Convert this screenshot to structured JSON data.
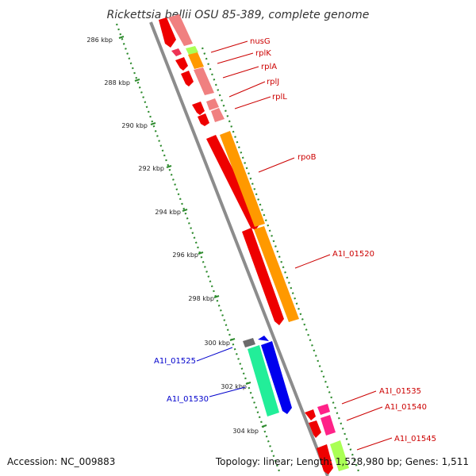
{
  "title": "Rickettsia bellii OSU 85-389, complete genome",
  "footer": {
    "accession": "Accession: NC_009883",
    "summary": "Topology: linear; Length: 1,528,980 bp; Genes: 1,511"
  },
  "colors": {
    "backbone": "#8c8c8c",
    "tick": "#2e8b2e",
    "label_red": "#cc0000",
    "label_blue": "#0000cc"
  },
  "ticks": [
    {
      "label": "286 kbp"
    },
    {
      "label": "288 kbp"
    },
    {
      "label": "290 kbp"
    },
    {
      "label": "292 kbp"
    },
    {
      "label": "294 kbp"
    },
    {
      "label": "296 kbp"
    },
    {
      "label": "298 kbp"
    },
    {
      "label": "300 kbp"
    },
    {
      "label": "302 kbp"
    },
    {
      "label": "304 kbp"
    }
  ],
  "gene_labels": [
    {
      "text": "nusG",
      "color": "#cc0000"
    },
    {
      "text": "rplK",
      "color": "#cc0000"
    },
    {
      "text": "rplA",
      "color": "#cc0000"
    },
    {
      "text": "rplJ",
      "color": "#cc0000"
    },
    {
      "text": "rplL",
      "color": "#cc0000"
    },
    {
      "text": "rpoB",
      "color": "#cc0000"
    },
    {
      "text": "A1I_01520",
      "color": "#cc0000"
    },
    {
      "text": "A1I_01525",
      "color": "#0000cc"
    },
    {
      "text": "A1I_01530",
      "color": "#0000cc"
    },
    {
      "text": "A1I_01535",
      "color": "#cc0000"
    },
    {
      "text": "A1I_01540",
      "color": "#cc0000"
    },
    {
      "text": "A1I_01545",
      "color": "#cc0000"
    }
  ]
}
